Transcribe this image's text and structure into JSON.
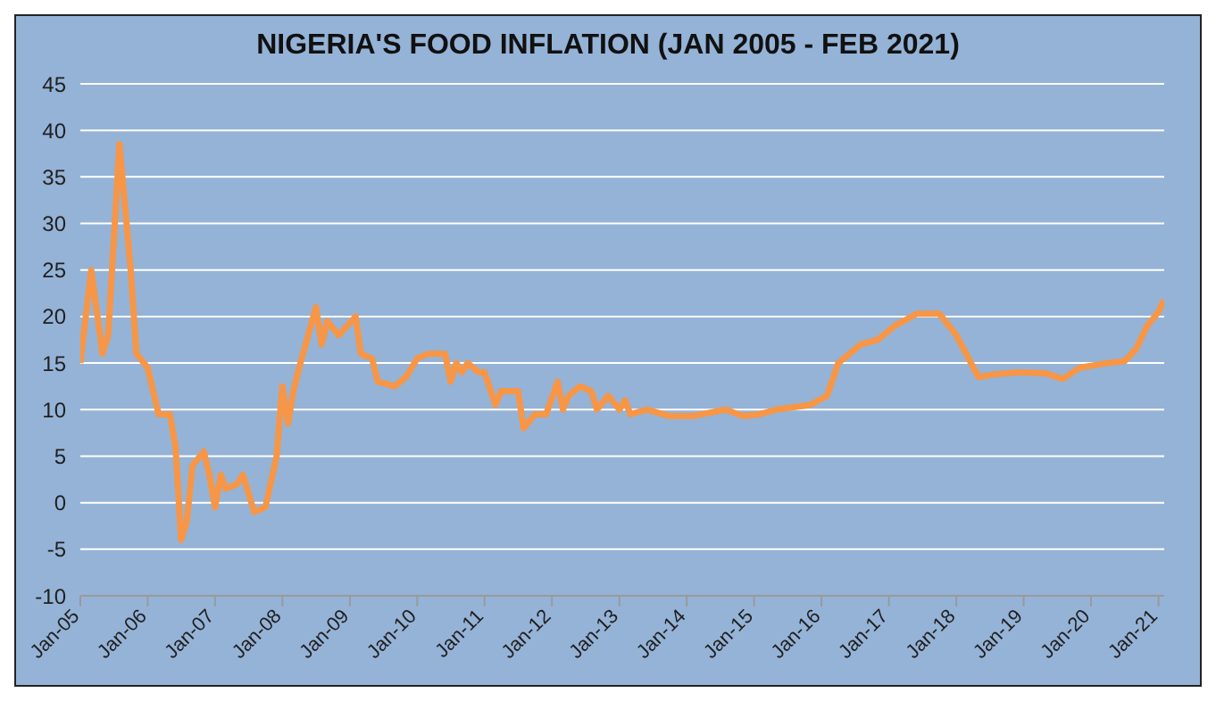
{
  "chart_data": {
    "type": "line",
    "title": "NIGERIA'S FOOD INFLATION (JAN 2005 - FEB 2021)",
    "xlim": [
      "2005-01",
      "2021-02"
    ],
    "xticks": [
      {
        "value": "2005-01",
        "label": "Jan-05"
      },
      {
        "value": "2006-01",
        "label": "Jan-06"
      },
      {
        "value": "2007-01",
        "label": "Jan-07"
      },
      {
        "value": "2008-01",
        "label": "Jan-08"
      },
      {
        "value": "2009-01",
        "label": "Jan-09"
      },
      {
        "value": "2010-01",
        "label": "Jan-10"
      },
      {
        "value": "2011-01",
        "label": "Jan-11"
      },
      {
        "value": "2012-01",
        "label": "Jan-12"
      },
      {
        "value": "2013-01",
        "label": "Jan-13"
      },
      {
        "value": "2014-01",
        "label": "Jan-14"
      },
      {
        "value": "2015-01",
        "label": "Jan-15"
      },
      {
        "value": "2016-01",
        "label": "Jan-16"
      },
      {
        "value": "2017-01",
        "label": "Jan-17"
      },
      {
        "value": "2018-01",
        "label": "Jan-18"
      },
      {
        "value": "2019-01",
        "label": "Jan-19"
      },
      {
        "value": "2020-01",
        "label": "Jan-20"
      },
      {
        "value": "2021-01",
        "label": "Jan-21"
      }
    ],
    "ylim": [
      -10,
      45
    ],
    "yticks": [
      -10,
      -5,
      0,
      5,
      10,
      15,
      20,
      25,
      30,
      35,
      40,
      45
    ],
    "grid": "y",
    "marker": "none",
    "line_style": "solid",
    "series": [
      {
        "color": "#f79646",
        "x": [
          "2005-01",
          "2005-03",
          "2005-05",
          "2005-06",
          "2005-08",
          "2005-10",
          "2005-11",
          "2006-01",
          "2006-03",
          "2006-05",
          "2006-06",
          "2006-07",
          "2006-08",
          "2006-09",
          "2006-11",
          "2006-12",
          "2007-01",
          "2007-02",
          "2007-03",
          "2007-05",
          "2007-06",
          "2007-08",
          "2007-10",
          "2007-12",
          "2008-01",
          "2008-02",
          "2008-03",
          "2008-04",
          "2008-07",
          "2008-08",
          "2008-09",
          "2008-11",
          "2009-02",
          "2009-03",
          "2009-05",
          "2009-06",
          "2009-09",
          "2009-11",
          "2010-01",
          "2010-03",
          "2010-06",
          "2010-07",
          "2010-08",
          "2010-09",
          "2010-10",
          "2010-12",
          "2011-01",
          "2011-03",
          "2011-04",
          "2011-06",
          "2011-07",
          "2011-08",
          "2011-10",
          "2011-12",
          "2012-02",
          "2012-03",
          "2012-04",
          "2012-06",
          "2012-08",
          "2012-09",
          "2012-11",
          "2013-01",
          "2013-02",
          "2013-03",
          "2013-06",
          "2013-10",
          "2014-02",
          "2014-08",
          "2014-11",
          "2015-02",
          "2015-05",
          "2015-11",
          "2016-02",
          "2016-04",
          "2016-08",
          "2016-11",
          "2017-02",
          "2017-06",
          "2017-10",
          "2018-01",
          "2018-05",
          "2018-08",
          "2018-12",
          "2019-05",
          "2019-08",
          "2019-11",
          "2020-04",
          "2020-07",
          "2020-09",
          "2020-11",
          "2021-01",
          "2021-02"
        ],
        "values": [
          15,
          25,
          16,
          18,
          38.5,
          25,
          16,
          14.5,
          9.5,
          9.5,
          6,
          -4,
          -2,
          4,
          5.5,
          3,
          -0.5,
          3,
          1.5,
          2,
          3,
          -1,
          -0.5,
          5,
          12.5,
          8.5,
          12,
          14.5,
          21,
          17,
          19.5,
          18,
          20,
          16,
          15.5,
          13,
          12.5,
          13.5,
          15.5,
          16,
          16,
          13,
          15,
          14,
          15,
          14,
          14,
          10.5,
          12,
          12,
          12,
          8,
          9.5,
          9.5,
          13,
          10,
          11.5,
          12.5,
          12,
          10,
          11.5,
          10,
          11,
          9.5,
          10,
          9.3,
          9.3,
          10,
          9.3,
          9.5,
          10,
          10.5,
          11.5,
          15,
          17,
          17.5,
          19,
          20.3,
          20.3,
          18,
          13.5,
          13.8,
          14,
          13.9,
          13.3,
          14.5,
          15,
          15.2,
          16.5,
          19,
          20.5,
          21.8
        ]
      }
    ]
  }
}
